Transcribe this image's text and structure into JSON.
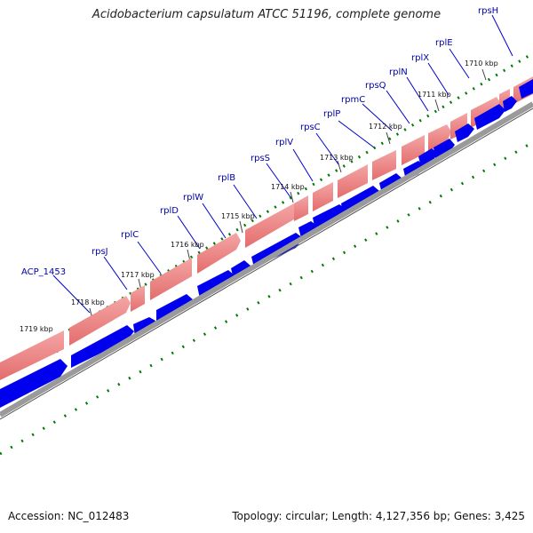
{
  "title": "Acidobacterium capsulatum ATCC 51196, complete genome",
  "footer": {
    "accession": "Accession: NC_012483",
    "summary": "Topology: circular; Length: 4,127,356 bp; Genes: 3,425"
  },
  "ticks": [
    {
      "label": "1719 kbp",
      "kbp": 1719
    },
    {
      "label": "1718 kbp",
      "kbp": 1718
    },
    {
      "label": "1717 kbp",
      "kbp": 1717
    },
    {
      "label": "1716 kbp",
      "kbp": 1716
    },
    {
      "label": "1715 kbp",
      "kbp": 1715
    },
    {
      "label": "1714 kbp",
      "kbp": 1714
    },
    {
      "label": "1713 kbp",
      "kbp": 1713
    },
    {
      "label": "1712 kbp",
      "kbp": 1712
    },
    {
      "label": "1711 kbp",
      "kbp": 1711
    },
    {
      "label": "1710 kbp",
      "kbp": 1710
    }
  ],
  "genes": [
    "ACP_1453",
    "rpsJ",
    "rplC",
    "rplD",
    "rplW",
    "rplB",
    "rpsS",
    "rplV",
    "rpsC",
    "rplP",
    "rpmC",
    "rpsQ",
    "rplN",
    "rplX",
    "rplE",
    "rpsH"
  ],
  "colors": {
    "cds_outer": "#f08080",
    "cds_inner": "#0000ee",
    "backbone": "#999999",
    "ticks": "#007a00",
    "gene_label": "#0000aa"
  }
}
